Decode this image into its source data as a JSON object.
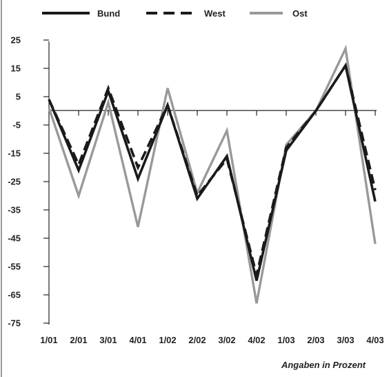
{
  "chart_data": {
    "type": "line",
    "categories": [
      "1/01",
      "2/01",
      "3/01",
      "4/01",
      "1/02",
      "2/02",
      "3/02",
      "4/02",
      "1/03",
      "2/03",
      "3/03",
      "4/03"
    ],
    "series": [
      {
        "name": "Bund",
        "color": "#1a1a1a",
        "dash": "solid",
        "values": [
          4,
          -21,
          7,
          -24,
          2,
          -31,
          -16,
          -60,
          -14,
          0,
          16,
          -32
        ]
      },
      {
        "name": "West",
        "color": "#1a1a1a",
        "dash": "dashed",
        "values": [
          4,
          -19,
          8,
          -20,
          2,
          -30,
          -17,
          -58,
          -13,
          0,
          16,
          -28
        ]
      },
      {
        "name": "Ost",
        "color": "#999999",
        "dash": "solid",
        "values": [
          1,
          -30,
          3,
          -41,
          8,
          -29,
          -7,
          -68,
          -12,
          0,
          22,
          -47
        ]
      }
    ],
    "yticks": [
      25,
      15,
      5,
      -5,
      -15,
      -25,
      -35,
      -45,
      -55,
      -65,
      -75
    ],
    "ylim": [
      -75,
      25
    ],
    "baseline": 0,
    "legend_position": "top",
    "note": "Angaben in Prozent"
  }
}
